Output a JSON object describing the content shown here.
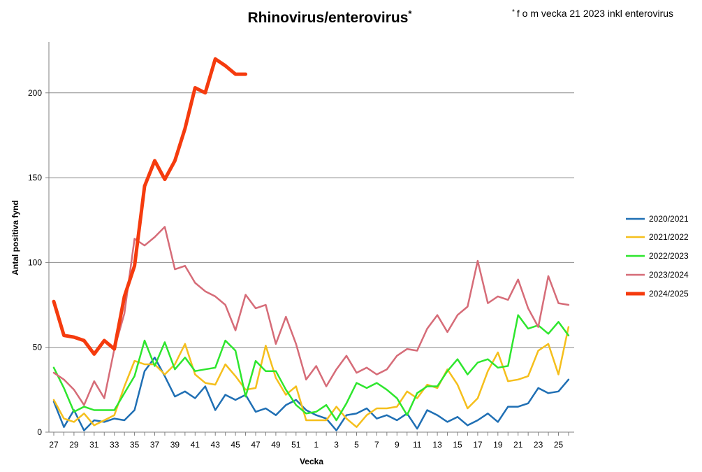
{
  "chart_data": {
    "type": "line",
    "title": "Rhinovirus/enterovirus",
    "title_mark": "*",
    "note_mark": "*",
    "note": "f o m vecka 21 2023 inkl  enterovirus",
    "xlabel": "Vecka",
    "ylabel": "Antal positiva fynd",
    "ylim": [
      0,
      230
    ],
    "yticks": [
      0,
      50,
      100,
      150,
      200
    ],
    "grid": true,
    "legend_position": "right",
    "weeks": [
      "27",
      "28",
      "29",
      "30",
      "31",
      "32",
      "33",
      "34",
      "35",
      "36",
      "37",
      "38",
      "39",
      "40",
      "41",
      "42",
      "43",
      "44",
      "45",
      "46",
      "47",
      "48",
      "49",
      "50",
      "51",
      "52",
      "1",
      "2",
      "3",
      "4",
      "5",
      "6",
      "7",
      "8",
      "9",
      "10",
      "11",
      "12",
      "13",
      "14",
      "15",
      "16",
      "17",
      "18",
      "19",
      "20",
      "21",
      "22",
      "23",
      "24",
      "25",
      "26"
    ],
    "xtick_labels": [
      "27",
      "29",
      "31",
      "33",
      "35",
      "37",
      "39",
      "41",
      "43",
      "45",
      "47",
      "49",
      "51",
      "1",
      "3",
      "5",
      "7",
      "9",
      "11",
      "13",
      "15",
      "17",
      "19",
      "21",
      "23",
      "25"
    ],
    "series": [
      {
        "name": "2020/2021",
        "color": "#1f6fb4",
        "width": 2.5,
        "values": [
          18,
          3,
          13,
          1,
          7,
          6,
          8,
          7,
          13,
          36,
          44,
          33,
          21,
          24,
          20,
          27,
          13,
          22,
          19,
          22,
          12,
          14,
          10,
          16,
          19,
          13,
          10,
          8,
          1,
          10,
          11,
          14,
          8,
          10,
          7,
          11,
          2,
          13,
          10,
          6,
          9,
          4,
          7,
          11,
          6,
          15,
          15,
          17,
          26,
          23,
          24,
          31
        ]
      },
      {
        "name": "2021/2022",
        "color": "#f5bf1c",
        "width": 2.5,
        "values": [
          19,
          8,
          6,
          11,
          4,
          7,
          10,
          27,
          42,
          40,
          40,
          34,
          40,
          52,
          34,
          29,
          28,
          40,
          33,
          25,
          26,
          51,
          32,
          22,
          27,
          7,
          7,
          7,
          15,
          8,
          3,
          10,
          14,
          14,
          15,
          24,
          20,
          28,
          26,
          37,
          28,
          14,
          20,
          36,
          47,
          30,
          31,
          33,
          48,
          52,
          34,
          62
        ]
      },
      {
        "name": "2022/2023",
        "color": "#2ee62e",
        "width": 2.5,
        "values": [
          38,
          26,
          12,
          15,
          13,
          13,
          13,
          23,
          33,
          54,
          39,
          53,
          37,
          44,
          36,
          37,
          38,
          54,
          48,
          21,
          42,
          36,
          36,
          25,
          16,
          11,
          12,
          16,
          7,
          17,
          29,
          26,
          29,
          25,
          20,
          10,
          23,
          27,
          27,
          36,
          43,
          34,
          41,
          43,
          38,
          39,
          69,
          61,
          63,
          58,
          65,
          57
        ]
      },
      {
        "name": "2023/2024",
        "color": "#d66c78",
        "width": 2.5,
        "values": [
          35,
          31,
          25,
          16,
          30,
          20,
          49,
          70,
          114,
          110,
          115,
          121,
          96,
          98,
          88,
          83,
          80,
          75,
          60,
          81,
          73,
          75,
          52,
          68,
          52,
          31,
          39,
          27,
          37,
          45,
          35,
          38,
          34,
          37,
          45,
          49,
          48,
          61,
          69,
          59,
          69,
          74,
          101,
          76,
          80,
          78,
          90,
          73,
          62,
          92,
          76,
          75
        ]
      },
      {
        "name": "2024/2025",
        "color": "#f53b0e",
        "width": 5,
        "values": [
          77,
          57,
          56,
          54,
          46,
          54,
          49,
          80,
          98,
          145,
          160,
          149,
          160,
          179,
          203,
          200,
          220,
          216,
          211,
          211
        ]
      }
    ]
  }
}
